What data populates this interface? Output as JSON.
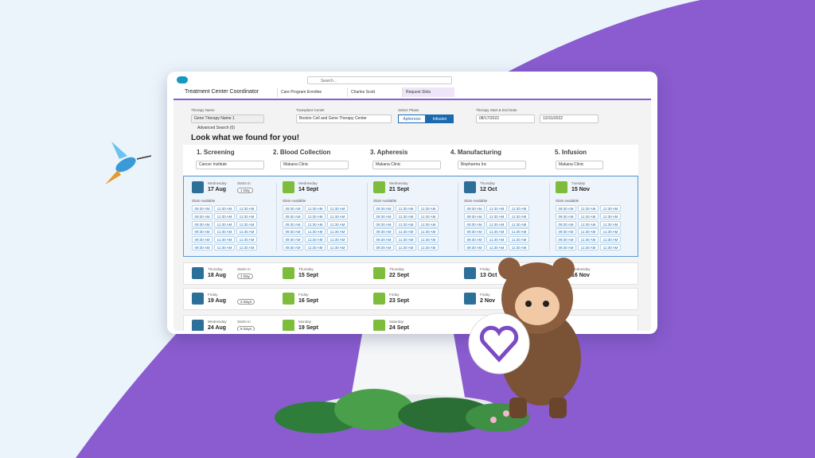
{
  "header": {
    "app_name": "Treatment Center Coordinator",
    "search": "Search...",
    "tabs": [
      "Care Program Enrollee",
      "Charles Scott",
      "Request Slots"
    ]
  },
  "form": {
    "therapy_name_label": "Therapy Name",
    "therapy_name": "Gene Therapy Name 1",
    "center_label": "Transplant Center",
    "center": "Boston Cell and Gene Therapy Center",
    "phase_label": "Select Phase",
    "phases": [
      "Apheresis",
      "Infusion"
    ],
    "dates_label": "Therapy Start & End Date",
    "start_date": "08/17/2022",
    "end_date": "12/31/2022",
    "advanced": "Advanced Search (0)"
  },
  "heading": "Look what we found for you!",
  "steps": [
    {
      "title": "1. Screening",
      "location": "Cancer Institute"
    },
    {
      "title": "2. Blood Collection",
      "location": "Makana Clinic"
    },
    {
      "title": "3. Apheresis",
      "location": "Makana Clinic"
    },
    {
      "title": "4. Manufacturing",
      "location": "Biopharma Inc"
    },
    {
      "title": "5. Infusion",
      "location": "Makana Clinic"
    }
  ],
  "selected": [
    {
      "day": "Wednesday",
      "date": "17 Aug",
      "starts_label": "Starts In",
      "starts": "1 Day",
      "slots_label": "Slots Available",
      "slots": [
        [
          "09:30 AM",
          "11:30 AM",
          "11:30 AM"
        ],
        [
          "09:30 AM",
          "11:30 AM",
          "11:30 AM"
        ],
        [
          "09:30 AM",
          "11:30 AM",
          "11:30 AM"
        ],
        [
          "09:30 AM",
          "11:30 AM",
          "11:30 AM"
        ],
        [
          "09:30 AM",
          "11:30 AM",
          "11:30 AM"
        ],
        [
          "09:30 AM",
          "11:30 AM",
          "11:30 AM"
        ]
      ]
    },
    {
      "day": "Wednesday",
      "date": "14 Sept",
      "slots_label": "Slots Available",
      "slots": [
        [
          "09:30 AM",
          "11:30 AM",
          "11:30 AM"
        ],
        [
          "09:30 AM",
          "11:30 AM",
          "11:30 AM"
        ],
        [
          "09:30 AM",
          "11:30 AM",
          "11:30 AM"
        ],
        [
          "09:30 AM",
          "11:30 AM",
          "11:30 AM"
        ],
        [
          "09:30 AM",
          "11:30 AM",
          "11:30 AM"
        ],
        [
          "09:30 AM",
          "11:30 AM",
          "11:30 AM"
        ]
      ]
    },
    {
      "day": "Wednesday",
      "date": "21 Sept",
      "slots_label": "Slots Available",
      "slots": [
        [
          "09:30 AM",
          "11:30 AM",
          "11:30 AM"
        ],
        [
          "09:30 AM",
          "11:30 AM",
          "11:30 AM"
        ],
        [
          "09:30 AM",
          "11:30 AM",
          "11:30 AM"
        ],
        [
          "09:30 AM",
          "11:30 AM",
          "11:30 AM"
        ],
        [
          "09:30 AM",
          "11:30 AM",
          "11:30 AM"
        ],
        [
          "09:30 AM",
          "11:30 AM",
          "11:30 AM"
        ]
      ]
    },
    {
      "day": "Thursday",
      "date": "12 Oct",
      "slots_label": "Slots Available",
      "slots": [
        [
          "09:30 AM",
          "11:30 AM",
          "11:30 AM"
        ],
        [
          "09:30 AM",
          "11:30 AM",
          "11:30 AM"
        ],
        [
          "09:30 AM",
          "11:30 AM",
          "11:30 AM"
        ],
        [
          "09:30 AM",
          "11:30 AM",
          "11:30 AM"
        ],
        [
          "09:30 AM",
          "11:30 AM",
          "11:30 AM"
        ],
        [
          "09:30 AM",
          "11:30 AM",
          "11:30 AM"
        ]
      ]
    },
    {
      "day": "Tuesday",
      "date": "15 Nov",
      "slots_label": "Slots Available",
      "slots": [
        [
          "09:30 AM",
          "11:30 AM",
          "11:30 AM"
        ],
        [
          "09:30 AM",
          "11:30 AM",
          "11:30 AM"
        ],
        [
          "09:30 AM",
          "11:30 AM",
          "11:30 AM"
        ],
        [
          "09:30 AM",
          "11:30 AM",
          "11:30 AM"
        ],
        [
          "09:30 AM",
          "11:30 AM",
          "11:30 AM"
        ],
        [
          "09:30 AM",
          "11:30 AM",
          "11:30 AM"
        ]
      ]
    }
  ],
  "rows": [
    [
      {
        "day": "Thursday",
        "date": "18 Aug",
        "starts_label": "Starts In",
        "starts": "1 Day"
      },
      {
        "day": "Thursday",
        "date": "15 Sept"
      },
      {
        "day": "Thursday",
        "date": "22 Sept"
      },
      {
        "day": "Friday",
        "date": "13 Oct"
      },
      {
        "day": "Wednesday",
        "date": "16 Nov"
      }
    ],
    [
      {
        "day": "Friday",
        "date": "19 Aug",
        "starts": "2 Days"
      },
      {
        "day": "Friday",
        "date": "16 Sept"
      },
      {
        "day": "Friday",
        "date": "23 Sept"
      },
      {
        "day": "Friday",
        "date": "2 Nov"
      }
    ],
    [
      {
        "day": "Wednesday",
        "date": "24 Aug",
        "starts_label": "Starts In",
        "starts": "8 Days"
      },
      {
        "day": "Monday",
        "date": "19 Sept"
      },
      {
        "day": "Saturday",
        "date": "24 Sept"
      }
    ]
  ]
}
